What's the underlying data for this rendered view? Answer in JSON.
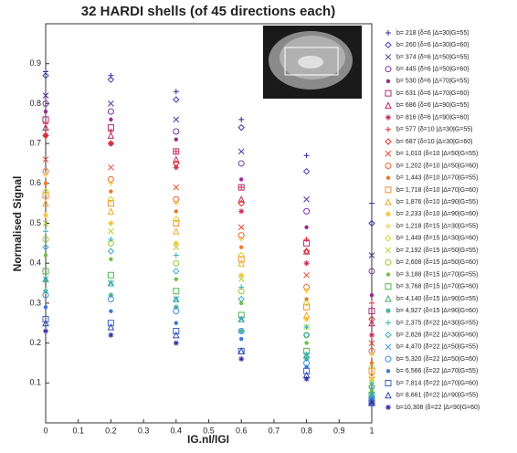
{
  "chart_data": {
    "type": "scatter",
    "title": "32 HARDI shells (of 45 directions each)",
    "x_label": "IG.nI/IGI",
    "y_label": "Normalised Signal",
    "xlim": [
      0,
      1
    ],
    "ylim": [
      0,
      1
    ],
    "xticks": [
      0,
      0.1,
      0.2,
      0.3,
      0.4,
      0.5,
      0.6,
      0.7,
      0.8,
      0.9,
      1
    ],
    "yticks": [
      0.1,
      0.2,
      0.3,
      0.4,
      0.5,
      0.6,
      0.7,
      0.8,
      0.9
    ],
    "x": [
      0,
      0.2,
      0.4,
      0.6,
      0.8,
      1
    ],
    "legend": "right",
    "series": [
      {
        "name": "b= 218 (δ=6 |Δ=30|G=55)",
        "color": "#2a2a9a",
        "marker": "plus",
        "values": [
          0.88,
          0.87,
          0.83,
          0.76,
          0.67,
          0.55
        ]
      },
      {
        "name": "b= 260 (δ=6 |Δ=30|G=60)",
        "color": "#3b3bb0",
        "marker": "diamond",
        "values": [
          0.87,
          0.86,
          0.81,
          0.74,
          0.63,
          0.5
        ]
      },
      {
        "name": "b= 374 (δ=6 |Δ=50|G=55)",
        "color": "#5a34a8",
        "marker": "x",
        "values": [
          0.82,
          0.8,
          0.76,
          0.68,
          0.56,
          0.42
        ]
      },
      {
        "name": "b= 445 (δ=6 |Δ=50|G=60)",
        "color": "#7a34a0",
        "marker": "circle",
        "values": [
          0.8,
          0.78,
          0.73,
          0.65,
          0.53,
          0.38
        ]
      },
      {
        "name": "b= 530 (δ=6 |Δ=70|G=55)",
        "color": "#9a2a90",
        "marker": "dot",
        "values": [
          0.78,
          0.76,
          0.71,
          0.61,
          0.49,
          0.32
        ]
      },
      {
        "name": "b= 631 (δ=6 |Δ=70|G=60)",
        "color": "#b02a80",
        "marker": "square",
        "values": [
          0.76,
          0.74,
          0.68,
          0.59,
          0.45,
          0.28
        ]
      },
      {
        "name": "b= 686 (δ=6 |Δ=90|G=55)",
        "color": "#c02a6a",
        "marker": "triangle",
        "values": [
          0.74,
          0.72,
          0.66,
          0.56,
          0.43,
          0.25
        ]
      },
      {
        "name": "b= 816 (δ=6 |Δ=90|G=60)",
        "color": "#d02a50",
        "marker": "star",
        "values": [
          0.72,
          0.7,
          0.64,
          0.53,
          0.4,
          0.22
        ]
      },
      {
        "name": "b= 577 (δ=10 |Δ=30|G=55)",
        "color": "#d82a3a",
        "marker": "plus",
        "values": [
          0.75,
          0.73,
          0.68,
          0.59,
          0.46,
          0.3
        ]
      },
      {
        "name": "b= 687 (δ=10 |Δ=30|G=60)",
        "color": "#e0302a",
        "marker": "diamond",
        "values": [
          0.72,
          0.7,
          0.65,
          0.55,
          0.43,
          0.26
        ]
      },
      {
        "name": "b= 1,010 (δ=10 |Δ=50|G=55)",
        "color": "#e8482a",
        "marker": "x",
        "values": [
          0.66,
          0.64,
          0.59,
          0.49,
          0.37,
          0.2
        ]
      },
      {
        "name": "b= 1,202 (δ=10 |Δ=50|G=60)",
        "color": "#ee602a",
        "marker": "circle",
        "values": [
          0.63,
          0.61,
          0.56,
          0.47,
          0.34,
          0.18
        ]
      },
      {
        "name": "b= 1,443 (δ=10 |Δ=70|G=55)",
        "color": "#f0782a",
        "marker": "dot",
        "values": [
          0.6,
          0.58,
          0.53,
          0.44,
          0.31,
          0.15
        ]
      },
      {
        "name": "b= 1,718 (δ=10 |Δ=70|G=60)",
        "color": "#f29030",
        "marker": "square",
        "values": [
          0.57,
          0.55,
          0.5,
          0.41,
          0.29,
          0.13
        ]
      },
      {
        "name": "b= 1,876 (δ=10 |Δ=90|G=55)",
        "color": "#f2a830",
        "marker": "triangle",
        "values": [
          0.55,
          0.53,
          0.48,
          0.4,
          0.27,
          0.12
        ]
      },
      {
        "name": "b= 2,233 (δ=10 |Δ=90|G=60)",
        "color": "#f2c030",
        "marker": "star",
        "values": [
          0.52,
          0.5,
          0.45,
          0.37,
          0.26,
          0.11
        ]
      },
      {
        "name": "b= 1,218 (δ=15 |Δ=30|G=55)",
        "color": "#e8cc30",
        "marker": "plus",
        "values": [
          0.62,
          0.6,
          0.55,
          0.46,
          0.33,
          0.17
        ]
      },
      {
        "name": "b= 1,449 (δ=15 |Δ=30|G=60)",
        "color": "#d8d030",
        "marker": "diamond",
        "values": [
          0.58,
          0.56,
          0.51,
          0.42,
          0.3,
          0.14
        ]
      },
      {
        "name": "b= 2,192 (δ=15 |Δ=50|G=55)",
        "color": "#b8d030",
        "marker": "x",
        "values": [
          0.5,
          0.48,
          0.44,
          0.36,
          0.24,
          0.1
        ]
      },
      {
        "name": "b= 2,608 (δ=15 |Δ=50|G=60)",
        "color": "#98c830",
        "marker": "circle",
        "values": [
          0.46,
          0.45,
          0.4,
          0.33,
          0.22,
          0.09
        ]
      },
      {
        "name": "b= 3,188 (δ=15 |Δ=70|G=55)",
        "color": "#70c040",
        "marker": "dot",
        "values": [
          0.42,
          0.41,
          0.36,
          0.3,
          0.2,
          0.08
        ]
      },
      {
        "name": "b= 3,768 (δ=15 |Δ=70|G=60)",
        "color": "#50b850",
        "marker": "square",
        "values": [
          0.38,
          0.37,
          0.33,
          0.27,
          0.18,
          0.07
        ]
      },
      {
        "name": "b= 4,140 (δ=15 |Δ=90|G=55)",
        "color": "#40b070",
        "marker": "triangle",
        "values": [
          0.36,
          0.35,
          0.31,
          0.26,
          0.17,
          0.07
        ]
      },
      {
        "name": "b= 4,927 (δ=15 |Δ=90|G=60)",
        "color": "#38b090",
        "marker": "star",
        "values": [
          0.33,
          0.32,
          0.29,
          0.23,
          0.16,
          0.06
        ]
      },
      {
        "name": "b= 2,375 (δ=22 |Δ=30|G=55)",
        "color": "#38b0b0",
        "marker": "plus",
        "values": [
          0.48,
          0.46,
          0.42,
          0.34,
          0.24,
          0.1
        ]
      },
      {
        "name": "b= 2,826 (δ=22 |Δ=30|G=60)",
        "color": "#38a8c8",
        "marker": "diamond",
        "values": [
          0.44,
          0.43,
          0.38,
          0.31,
          0.22,
          0.09
        ]
      },
      {
        "name": "b= 4,470 (δ=22 |Δ=50|G=55)",
        "color": "#38a0d8",
        "marker": "x",
        "values": [
          0.36,
          0.35,
          0.31,
          0.26,
          0.17,
          0.07
        ]
      },
      {
        "name": "b= 5,320 (δ=22 |Δ=50|G=60)",
        "color": "#3890e0",
        "marker": "circle",
        "values": [
          0.32,
          0.31,
          0.28,
          0.23,
          0.15,
          0.06
        ]
      },
      {
        "name": "b= 6,566 (δ=22 |Δ=70|G=55)",
        "color": "#3878d8",
        "marker": "dot",
        "values": [
          0.29,
          0.28,
          0.25,
          0.21,
          0.14,
          0.06
        ]
      },
      {
        "name": "b= 7,814 (δ=22 |Δ=70|G=60)",
        "color": "#3860c8",
        "marker": "square",
        "values": [
          0.26,
          0.25,
          0.23,
          0.18,
          0.13,
          0.05
        ]
      },
      {
        "name": "b= 8,661 (δ=22 |Δ=90|G=55)",
        "color": "#3048b8",
        "marker": "triangle",
        "values": [
          0.25,
          0.24,
          0.22,
          0.18,
          0.12,
          0.05
        ]
      },
      {
        "name": "b=10,308 (δ=22 |Δ=90|G=60)",
        "color": "#3030a0",
        "marker": "star",
        "values": [
          0.23,
          0.22,
          0.2,
          0.16,
          0.11,
          0.05
        ]
      }
    ]
  }
}
